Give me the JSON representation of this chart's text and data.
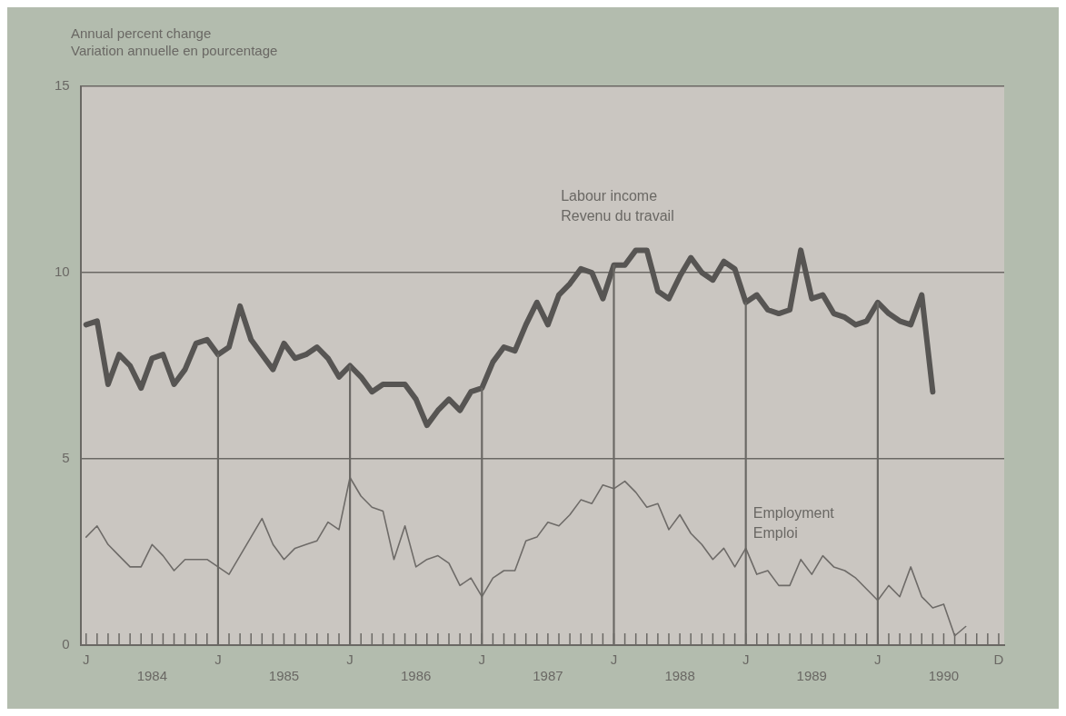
{
  "chart_data": {
    "type": "line",
    "ylabel": "Annual percent change\nVariation annuelle en pourcentage",
    "categories": [
      "J",
      null,
      null,
      null,
      null,
      null,
      "1984",
      null,
      null,
      null,
      null,
      null,
      "J",
      null,
      null,
      null,
      null,
      null,
      "1985",
      null,
      null,
      null,
      null,
      null,
      "J",
      null,
      null,
      null,
      null,
      null,
      "1986",
      null,
      null,
      null,
      null,
      null,
      "J",
      null,
      null,
      null,
      null,
      null,
      "1987",
      null,
      null,
      null,
      null,
      null,
      "J",
      null,
      null,
      null,
      null,
      null,
      "1988",
      null,
      null,
      null,
      null,
      null,
      "J",
      null,
      null,
      null,
      null,
      null,
      "1989",
      null,
      null,
      null,
      null,
      null,
      "J",
      null,
      null,
      null,
      null,
      null,
      "1990",
      null,
      null,
      null,
      null,
      "D"
    ],
    "series": [
      {
        "name": "Labour income\nRevenu du travail",
        "color": "#575553",
        "values": [
          8.6,
          8.7,
          7.0,
          7.8,
          7.5,
          6.9,
          7.7,
          7.8,
          7.0,
          7.4,
          8.1,
          8.2,
          7.8,
          8.0,
          9.1,
          8.2,
          7.8,
          7.4,
          8.1,
          7.7,
          7.8,
          8.0,
          7.7,
          7.2,
          7.5,
          7.2,
          6.8,
          7.0,
          7.0,
          7.0,
          6.6,
          5.9,
          6.3,
          6.6,
          6.3,
          6.8,
          6.9,
          7.6,
          8.0,
          7.9,
          8.6,
          9.2,
          8.6,
          9.4,
          9.7,
          10.1,
          10.0,
          9.3,
          10.2,
          10.2,
          10.6,
          10.6,
          9.5,
          9.3,
          9.9,
          10.4,
          10.0,
          9.8,
          10.3,
          10.1,
          9.2,
          9.4,
          9.0,
          8.9,
          9.0,
          10.6,
          9.3,
          9.4,
          8.9,
          8.8,
          8.6,
          8.7,
          9.2,
          8.9,
          8.7,
          8.6,
          9.4,
          6.8,
          null,
          null,
          null,
          null,
          null,
          null
        ]
      },
      {
        "name": "Employment\nEmploi",
        "color": "#6e6b68",
        "values": [
          2.9,
          3.2,
          2.7,
          2.4,
          2.1,
          2.1,
          2.7,
          2.4,
          2.0,
          2.3,
          2.3,
          2.3,
          2.1,
          1.9,
          2.4,
          2.9,
          3.4,
          2.7,
          2.3,
          2.6,
          2.7,
          2.8,
          3.3,
          3.1,
          4.5,
          4.0,
          3.7,
          3.6,
          2.3,
          3.2,
          2.1,
          2.3,
          2.4,
          2.2,
          1.6,
          1.8,
          1.3,
          1.8,
          2.0,
          2.0,
          2.8,
          2.9,
          3.3,
          3.2,
          3.5,
          3.9,
          3.8,
          4.3,
          4.2,
          4.4,
          4.1,
          3.7,
          3.8,
          3.1,
          3.5,
          3.0,
          2.7,
          2.3,
          2.6,
          2.1,
          2.6,
          1.9,
          2.0,
          1.6,
          1.6,
          2.3,
          1.9,
          2.4,
          2.1,
          2.0,
          1.8,
          1.5,
          1.2,
          1.6,
          1.3,
          2.1,
          1.3,
          1.0,
          1.1,
          0.25,
          0.5,
          null,
          null,
          null
        ]
      },
      {
        "type": "bar",
        "color": "#6a6864",
        "values": [
          null,
          null,
          null,
          null,
          null,
          null,
          null,
          null,
          null,
          null,
          null,
          null,
          7.8,
          null,
          null,
          null,
          null,
          null,
          null,
          null,
          null,
          null,
          null,
          null,
          7.5,
          null,
          null,
          null,
          null,
          null,
          null,
          null,
          null,
          null,
          null,
          null,
          6.9,
          null,
          null,
          null,
          null,
          null,
          null,
          null,
          null,
          null,
          null,
          null,
          10.2,
          null,
          null,
          null,
          null,
          null,
          null,
          null,
          null,
          null,
          null,
          null,
          9.2,
          null,
          null,
          null,
          null,
          null,
          null,
          null,
          null,
          null,
          null,
          null,
          9.2,
          null,
          null,
          null,
          null,
          null,
          null,
          null,
          null,
          null,
          null,
          null
        ]
      }
    ],
    "ylim": [
      0,
      15
    ],
    "yticks": [
      0,
      5,
      10,
      15
    ],
    "grid": "y",
    "legend": false,
    "marker": "none",
    "line_style": "solid"
  }
}
